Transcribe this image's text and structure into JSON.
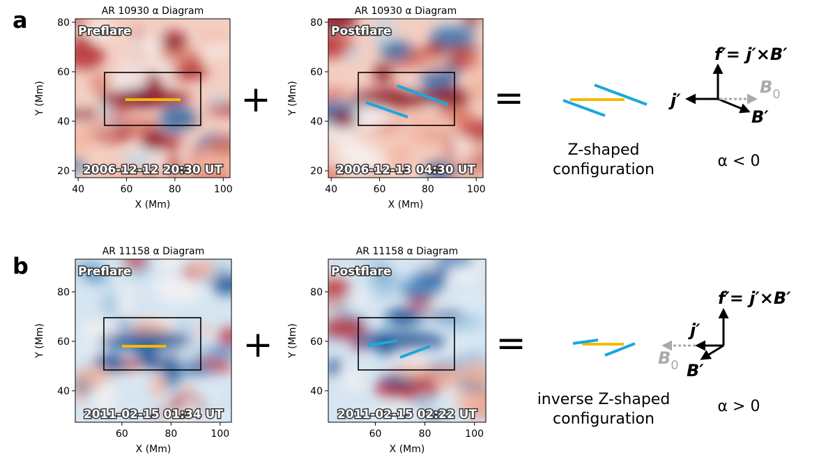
{
  "figure": {
    "rows": [
      {
        "label": "a",
        "panels": [
          {
            "title": "AR 10930  α Diagram",
            "tag": "Preflare",
            "time": "2006-12-12 20:30 UT",
            "xlabel": "X (Mm)",
            "ylabel": "Y (Mm)",
            "xlim": [
              38.8,
              102.8
            ],
            "ylim": [
              17.2,
              81.4
            ],
            "xticks": [
              40,
              60,
              80,
              100
            ],
            "yticks": [
              20,
              40,
              60,
              80
            ]
          },
          {
            "title": "AR 10930  α Diagram",
            "tag": "Postflare",
            "time": "2006-12-13 04:30 UT",
            "xlabel": "X (Mm)",
            "ylabel": "Y (Mm)",
            "xlim": [
              38.8,
              102.8
            ],
            "ylim": [
              17.2,
              81.4
            ],
            "xticks": [
              40,
              60,
              80,
              100
            ],
            "yticks": [
              20,
              40,
              60,
              80
            ]
          }
        ],
        "plus": "+",
        "equals": "=",
        "configuration": [
          "Z-shaped",
          "configuration"
        ],
        "vector": {
          "f": "f′= j′×B′",
          "j": "j′",
          "B": "B′",
          "B0": "B",
          "B0_sub": "0"
        },
        "alpha": "α < 0"
      },
      {
        "label": "b",
        "panels": [
          {
            "title": "AR 11158  α Diagram",
            "tag": "Preflare",
            "time": "2011-02-15 01:34 UT",
            "xlabel": "X (Mm)",
            "ylabel": "Y (Mm)",
            "xlim": [
              41,
              104.6
            ],
            "ylim": [
              27.3,
              93.2
            ],
            "xticks": [
              60,
              80,
              100
            ],
            "yticks": [
              40,
              60,
              80
            ]
          },
          {
            "title": "AR 11158  α Diagram",
            "tag": "Postflare",
            "time": "2011-02-15 02:22 UT",
            "xlabel": "X (Mm)",
            "ylabel": "Y (Mm)",
            "xlim": [
              41,
              104.6
            ],
            "ylim": [
              27.3,
              93.2
            ],
            "xticks": [
              60,
              80,
              100
            ],
            "yticks": [
              40,
              60,
              80
            ]
          }
        ],
        "plus": "+",
        "equals": "=",
        "configuration": [
          "inverse Z-shaped",
          "configuration"
        ],
        "vector": {
          "f": "f′= j′×B′",
          "j": "j′",
          "B": "B′",
          "B0": "B",
          "B0_sub": "0"
        },
        "alpha": "α > 0"
      }
    ]
  }
}
